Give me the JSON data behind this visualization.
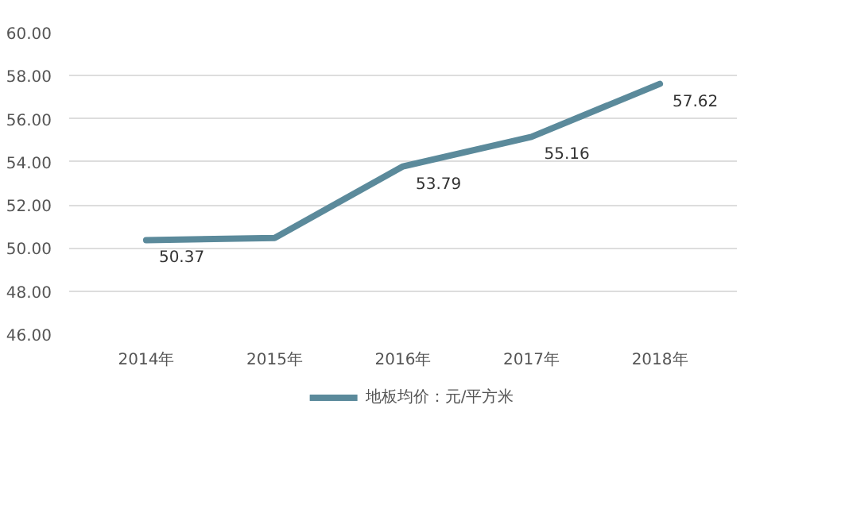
{
  "chart_data": {
    "type": "line",
    "categories": [
      "2014年",
      "2015年",
      "2016年",
      "2017年",
      "2018年"
    ],
    "series": [
      {
        "name": "地板均价：元/平方米",
        "color": "#5b8a9b",
        "values": [
          50.37,
          50.47,
          53.79,
          55.16,
          57.62
        ],
        "value_labels": [
          "50.37",
          null,
          "53.79",
          "55.16",
          "57.62"
        ]
      }
    ],
    "ylim": [
      46,
      60
    ],
    "yticks": [
      {
        "value": 46,
        "label": "46.00"
      },
      {
        "value": 48,
        "label": "48.00"
      },
      {
        "value": 50,
        "label": "50.00"
      },
      {
        "value": 52,
        "label": "52.00"
      },
      {
        "value": 54,
        "label": "54.00"
      },
      {
        "value": 56,
        "label": "56.00"
      },
      {
        "value": 58,
        "label": "58.00"
      },
      {
        "value": 60,
        "label": "60.00"
      }
    ],
    "grid": "y",
    "legend": "bottom",
    "marker": "none",
    "line_style": "solid"
  }
}
